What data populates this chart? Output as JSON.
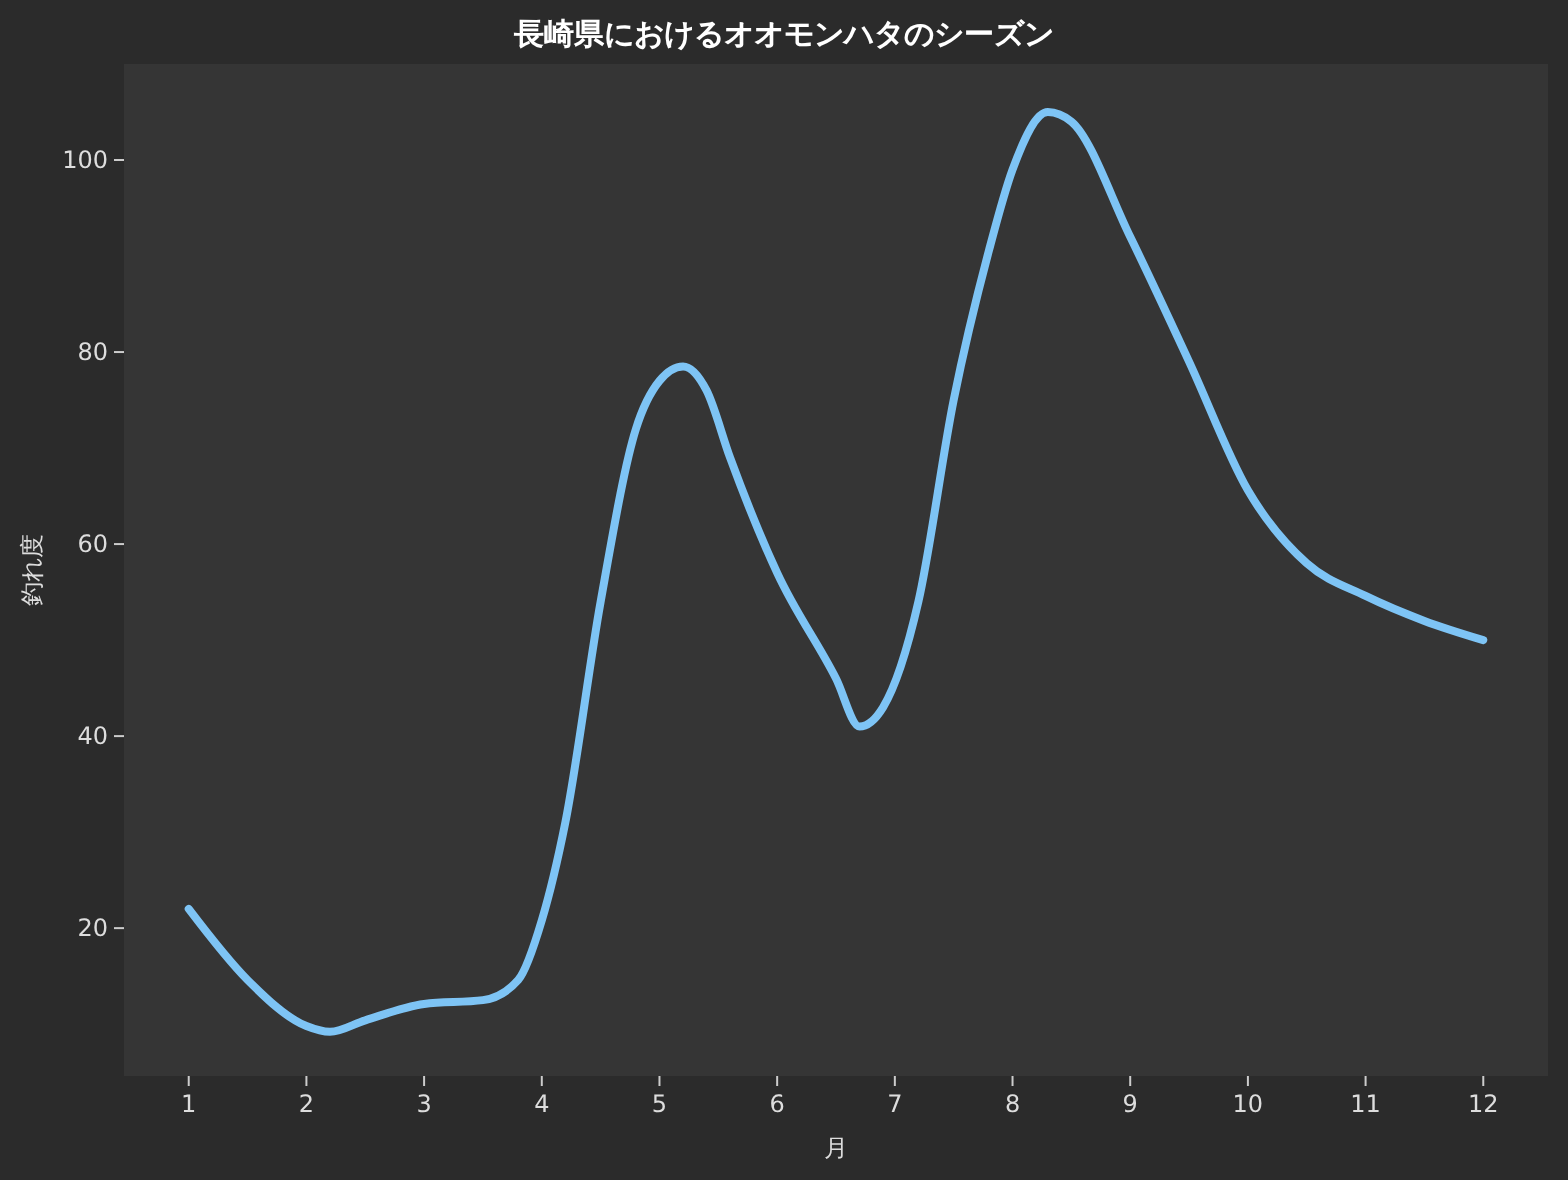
{
  "chart_data": {
    "type": "line",
    "title": "長崎県におけるオオモンハタのシーズン",
    "xlabel": "月",
    "ylabel": "釣れ度",
    "x": [
      1,
      1.5,
      2,
      2.2,
      2.5,
      3,
      3.5,
      3.8,
      4,
      4.2,
      4.5,
      4.8,
      5,
      5.2,
      5.4,
      5.6,
      6,
      6.5,
      6.7,
      6.9,
      7.2,
      7.5,
      7.8,
      8,
      8.3,
      8.5,
      9,
      9.5,
      10,
      10.5,
      11,
      11.5,
      12
    ],
    "series": [
      {
        "color": "#7ec4f5",
        "values": [
          22,
          14.6,
          9.8,
          9.2,
          10.4,
          12.1,
          12.5,
          14.6,
          20.8,
          31,
          54,
          72,
          77,
          78.5,
          76,
          69,
          57,
          46,
          41,
          43,
          54,
          75,
          90.6,
          99,
          105,
          104,
          92,
          79,
          65.6,
          58,
          54.6,
          52,
          50
        ]
      }
    ],
    "xlim": [
      0.45,
      12.55
    ],
    "xticks": [
      1,
      2,
      3,
      4,
      5,
      6,
      7,
      8,
      9,
      10,
      11,
      12
    ],
    "ylim": [
      4.6,
      110
    ],
    "yticks": [
      20,
      40,
      60,
      80,
      100
    ],
    "grid": false,
    "marker": "none",
    "line_style": "solid"
  }
}
